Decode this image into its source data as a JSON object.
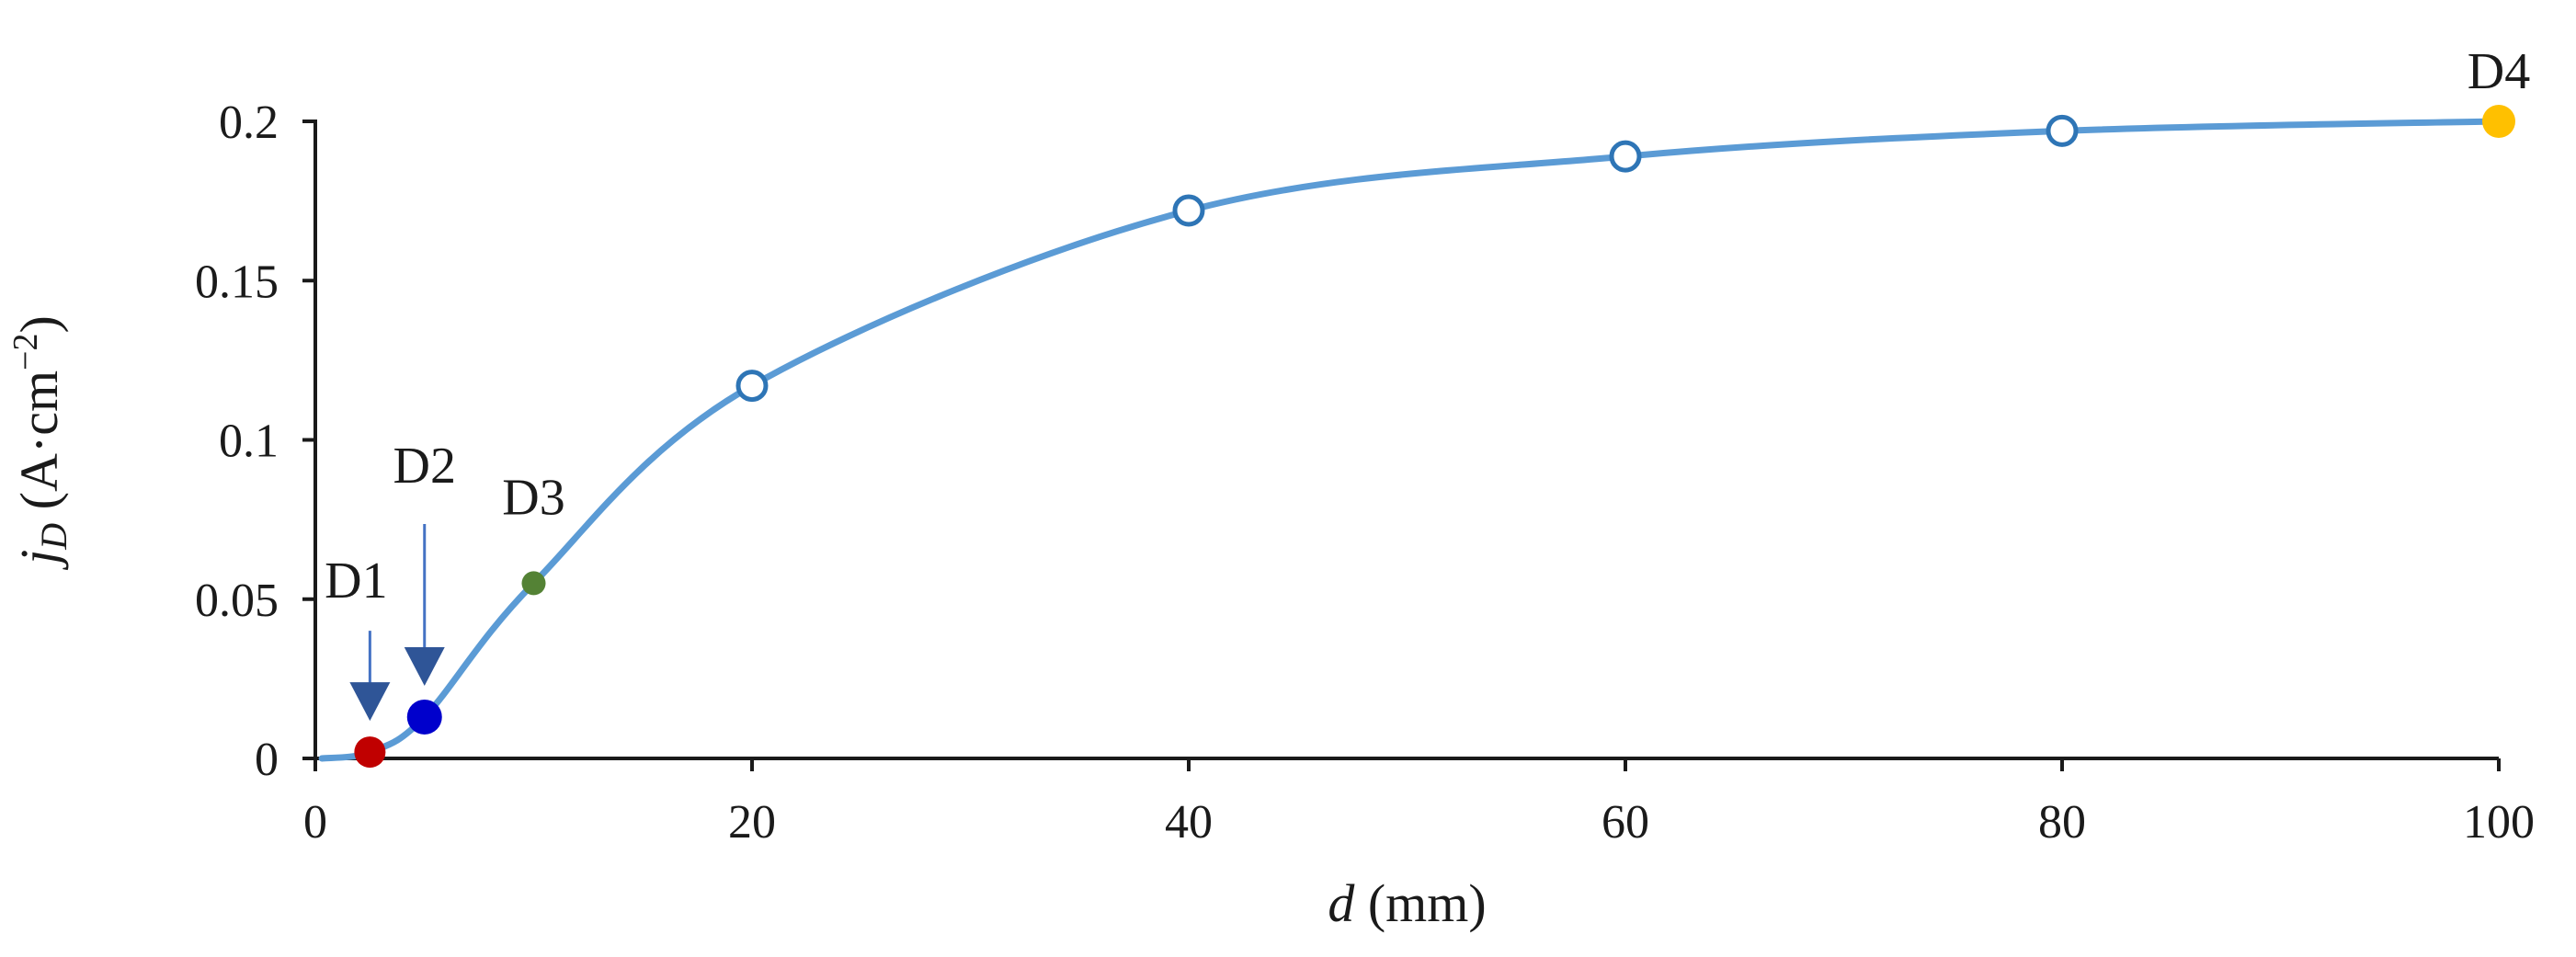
{
  "chart_data": {
    "type": "line",
    "title": "",
    "xlabel": {
      "var": "d",
      "unit": " (mm)"
    },
    "ylabel": {
      "var": "j",
      "sub": "D",
      "unit_prefix": " (A·cm",
      "unit_sup": "−2",
      "unit_suffix": ")"
    },
    "xlim": [
      0,
      100
    ],
    "ylim": [
      0,
      0.2
    ],
    "xticks": [
      0,
      20,
      40,
      60,
      80,
      100
    ],
    "xtick_labels": [
      "0",
      "20",
      "40",
      "60",
      "80",
      "100"
    ],
    "yticks": [
      0,
      0.05,
      0.1,
      0.15,
      0.2
    ],
    "ytick_labels": [
      "0",
      "0.05",
      "0.1",
      "0.15",
      "0.2"
    ],
    "grid": false,
    "series": [
      {
        "line_color": "#5b9bd5",
        "x": [
          2.5,
          5,
          10,
          20,
          40,
          60,
          80,
          100
        ],
        "y": [
          0.002,
          0.013,
          0.055,
          0.117,
          0.172,
          0.189,
          0.197,
          0.2
        ]
      }
    ],
    "open_markers": [
      {
        "x": 20,
        "y": 0.117
      },
      {
        "x": 40,
        "y": 0.172
      },
      {
        "x": 60,
        "y": 0.189
      },
      {
        "x": 80,
        "y": 0.197
      }
    ],
    "highlight_points": [
      {
        "label": "D1",
        "x": 2.5,
        "y": 0.002,
        "color": "#c00000",
        "arrow": true
      },
      {
        "label": "D2",
        "x": 5,
        "y": 0.013,
        "color": "#0000cc",
        "arrow": true
      },
      {
        "label": "D3",
        "x": 10,
        "y": 0.055,
        "color": "#548235",
        "arrow": false
      },
      {
        "label": "D4",
        "x": 100,
        "y": 0.2,
        "color": "#ffc000",
        "arrow": false
      }
    ]
  }
}
